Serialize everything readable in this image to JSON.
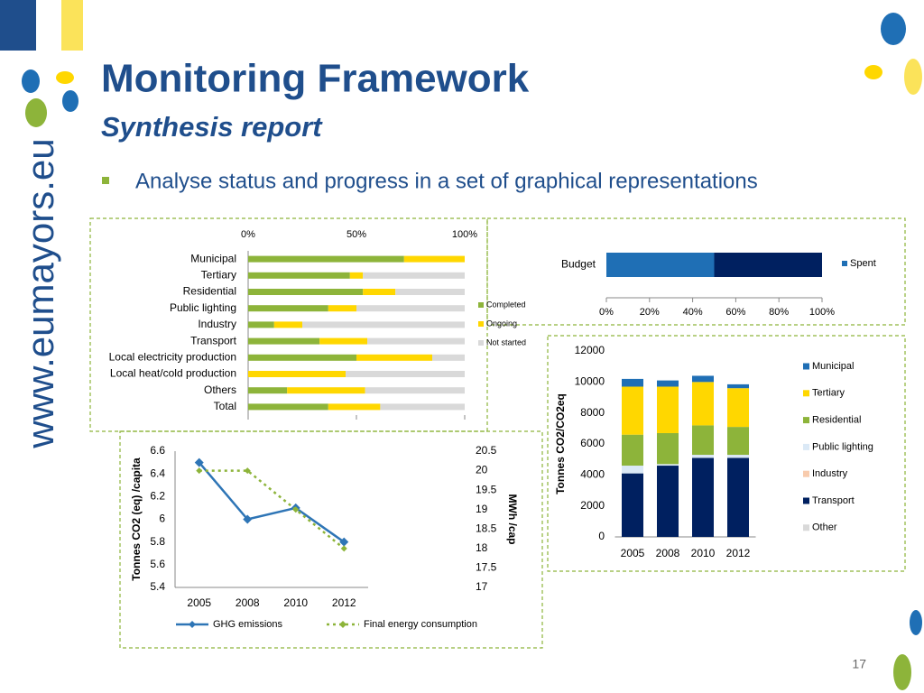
{
  "header": {
    "title": "Monitoring Framework",
    "subtitle": "Synthesis report"
  },
  "bullet": "Analyse status and progress in a set of graphical representations",
  "sidebar": "www.eumayors.eu",
  "page_number": "17",
  "chart_data": [
    {
      "type": "bar",
      "orientation": "horizontal",
      "stacked": true,
      "categories": [
        "Municipal",
        "Tertiary",
        "Residential",
        "Public lighting",
        "Industry",
        "Transport",
        "Local electricity production",
        "Local heat/cold production",
        "Others",
        "Total"
      ],
      "series": [
        {
          "name": "Completed",
          "color": "#8db43a",
          "values": [
            72,
            47,
            53,
            37,
            12,
            33,
            50,
            0,
            18,
            37
          ]
        },
        {
          "name": "Ongoing",
          "color": "#ffd700",
          "values": [
            28,
            6,
            15,
            13,
            13,
            22,
            35,
            45,
            36,
            24
          ]
        },
        {
          "name": "Not started",
          "color": "#d9d9d9",
          "values": [
            0,
            47,
            32,
            50,
            75,
            45,
            15,
            55,
            46,
            39
          ]
        }
      ],
      "xlim": [
        0,
        100
      ],
      "xticks": [
        {
          "value": 0,
          "label": "0%"
        },
        {
          "value": 50,
          "label": "50%"
        },
        {
          "value": 100,
          "label": "100%"
        }
      ],
      "legend": "right"
    },
    {
      "type": "bar",
      "orientation": "horizontal",
      "stacked": true,
      "categories": [
        "Budget"
      ],
      "series": [
        {
          "name": "Spent",
          "color": "#1f6fb5",
          "values": [
            50
          ]
        },
        {
          "color": "#002060",
          "values": [
            50
          ]
        }
      ],
      "xlim": [
        0,
        100
      ],
      "xticks": [
        {
          "value": 0,
          "label": "0%"
        },
        {
          "value": 20,
          "label": "20%"
        },
        {
          "value": 40,
          "label": "40%"
        },
        {
          "value": 60,
          "label": "60%"
        },
        {
          "value": 80,
          "label": "80%"
        },
        {
          "value": 100,
          "label": "100%"
        }
      ],
      "legend": "right"
    },
    {
      "type": "line",
      "categories": [
        "2005",
        "2008",
        "2010",
        "2012"
      ],
      "ylabel": "Tonnes CO2 (eq) /capita",
      "y2label": "MWh /cap",
      "ylim": [
        5.4,
        6.6
      ],
      "yticks": [
        5.4,
        5.6,
        5.8,
        6,
        6.2,
        6.4,
        6.6
      ],
      "y2lim": [
        17,
        20.5
      ],
      "y2ticks": [
        17,
        17.5,
        18,
        18.5,
        19,
        19.5,
        20,
        20.5
      ],
      "series": [
        {
          "name": "GHG emissions",
          "color": "#2e75b6",
          "values": [
            6.5,
            6.0,
            6.1,
            5.8
          ]
        },
        {
          "name": "Final energy consumption",
          "color": "#8db43a",
          "values": [
            20,
            20,
            19,
            18
          ],
          "axis": "y2",
          "dashed": true
        }
      ],
      "legend": "bottom"
    },
    {
      "type": "bar",
      "orientation": "vertical",
      "stacked": true,
      "categories": [
        "2005",
        "2008",
        "2010",
        "2012"
      ],
      "ylabel": "Tonnes CO2/CO2eq",
      "ylim": [
        0,
        12000
      ],
      "yticks": [
        0,
        2000,
        4000,
        6000,
        8000,
        10000,
        12000
      ],
      "series": [
        {
          "name": "Municipal",
          "color": "#1f6fb5",
          "values": [
            500,
            400,
            400,
            250
          ]
        },
        {
          "name": "Tertiary",
          "color": "#ffd700",
          "values": [
            3100,
            3000,
            2800,
            2500
          ]
        },
        {
          "name": "Residential",
          "color": "#8db43a",
          "values": [
            2000,
            2000,
            1900,
            1800
          ]
        },
        {
          "name": "Public lighting",
          "color": "#dbe9f6",
          "values": [
            500,
            100,
            200,
            200
          ]
        },
        {
          "name": "Industry",
          "color": "#f8cbad",
          "values": [
            0,
            0,
            0,
            0
          ]
        },
        {
          "name": "Transport",
          "color": "#002060",
          "values": [
            4100,
            4600,
            5100,
            5100
          ]
        },
        {
          "name": "Other",
          "color": "#d9d9d9",
          "values": [
            0,
            0,
            0,
            0
          ]
        }
      ],
      "legend": "right"
    }
  ]
}
